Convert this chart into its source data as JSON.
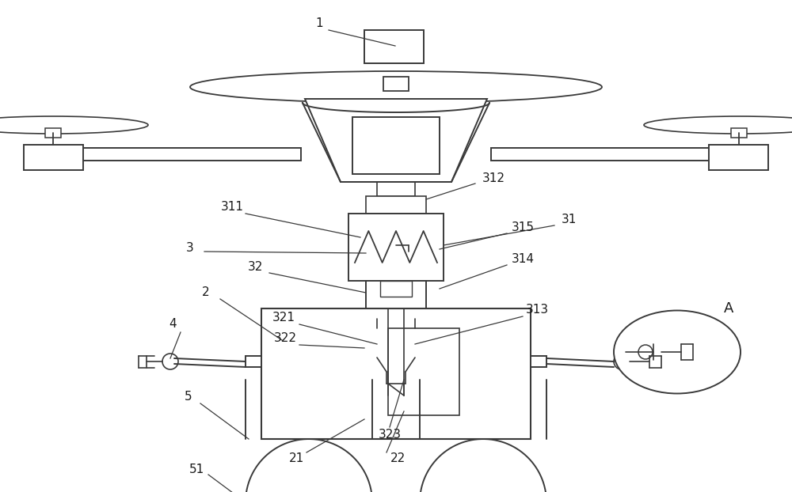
{
  "background_color": "#ffffff",
  "line_color": "#3a3a3a",
  "line_width": 1.4,
  "figsize": [
    10.0,
    6.22
  ],
  "dpi": 100
}
